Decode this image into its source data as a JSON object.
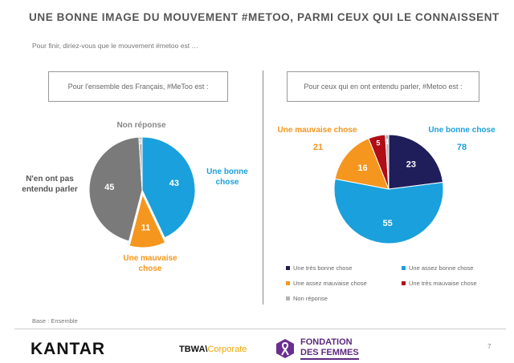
{
  "page": {
    "title": "UNE BONNE IMAGE DU MOUVEMENT #METOO, PARMI CEUX QUI LE CONNAISSENT",
    "question": "Pour finir, diriez-vous que le mouvement #metoo est …",
    "base": "Base : Ensemble",
    "page_number": "7"
  },
  "footer": {
    "kantar": "KANTAR",
    "tbwa": "TBWA\\",
    "tbwa_corporate": "Corporate",
    "fondation_line1": "FONDATION",
    "fondation_line2": "DES FEMMES"
  },
  "chart_data": [
    {
      "type": "pie",
      "title": "Pour l'ensemble des Français, #MeToo est :",
      "slices": [
        {
          "label": "Une bonne chose",
          "value": 43,
          "color": "#1aa0dc"
        },
        {
          "label": "Une mauvaise chose",
          "value": 11,
          "color": "#f5961e"
        },
        {
          "label": "N'en ont pas entendu parler",
          "value": 45,
          "color": "#7a7a7a"
        },
        {
          "label": "Non réponse",
          "value": 1,
          "color": "#b3b3b3"
        }
      ],
      "annotations": {
        "bonne": "Une bonne chose",
        "mauvaise": "Une mauvaise chose",
        "pas_entendu": "N'en ont pas entendu parler",
        "non_reponse": "Non réponse"
      },
      "annotation_colors": {
        "bonne": "#1aa0dc",
        "mauvaise": "#f5961e",
        "pas_entendu": "#555555",
        "non_reponse": "#888888"
      }
    },
    {
      "type": "pie",
      "title": "Pour ceux qui en ont entendu parler, #Metoo est :",
      "slices": [
        {
          "label": "Une très bonne chose",
          "value": 23,
          "color": "#1f1d5a"
        },
        {
          "label": "Une assez bonne chose",
          "value": 55,
          "color": "#1aa0dc"
        },
        {
          "label": "Une assez mauvaise chose",
          "value": 16,
          "color": "#f5961e"
        },
        {
          "label": "Une très mauvaise chose",
          "value": 5,
          "color": "#b00d16"
        },
        {
          "label": "Non réponse",
          "value": 1,
          "color": "#b3b3b3"
        }
      ],
      "groups": [
        {
          "label": "Une bonne chose",
          "value": 78,
          "color": "#1aa0dc"
        },
        {
          "label": "Une mauvaise chose",
          "value": 21,
          "color": "#f5961e"
        }
      ],
      "legend": "bottom"
    }
  ]
}
